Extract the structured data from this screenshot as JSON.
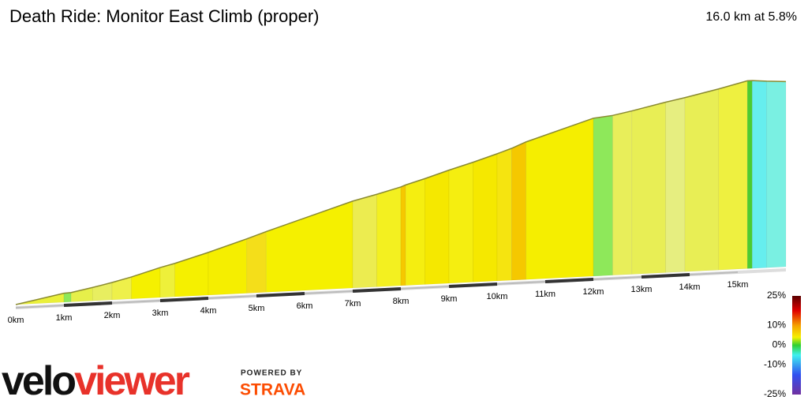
{
  "chart_data": {
    "type": "gradient-profile",
    "title": "Death Ride: Monitor East Climb (proper)",
    "subtitle": "16.0 km at 5.8%",
    "bins": [
      0,
      1,
      1.15,
      1.6,
      2,
      2.4,
      3,
      3.3,
      4,
      4.8,
      5.2,
      7,
      7.5,
      8,
      8.1,
      8.5,
      9,
      9.5,
      10,
      10.3,
      10.6,
      12,
      12.4,
      12.8,
      13.5,
      13.9,
      14.6,
      15.2,
      15.3,
      15.6,
      16
    ],
    "gradients": [
      4,
      1,
      4,
      4.5,
      5,
      6,
      5,
      6,
      6.5,
      7,
      6.5,
      5,
      5.5,
      8,
      6,
      6.5,
      6,
      6.5,
      7,
      8.5,
      6.5,
      2,
      4,
      4.5,
      4,
      4.5,
      5,
      0,
      -2,
      -1.5
    ],
    "colors": [
      "#eaf03a",
      "#8de85a",
      "#e6ef4a",
      "#e8ee60",
      "#eef04a",
      "#f5f000",
      "#eef03a",
      "#f5f000",
      "#f5ee00",
      "#f4de1a",
      "#f5f000",
      "#ecec50",
      "#f3f020",
      "#f5c800",
      "#f5ee10",
      "#f5e800",
      "#f5ee10",
      "#f5e800",
      "#f5e410",
      "#f5c800",
      "#f5ee00",
      "#8ee85a",
      "#e8ee5a",
      "#e8ee55",
      "#e6ee80",
      "#e8ee55",
      "#eef040",
      "#4ccc30",
      "#66eeee",
      "#7af0e2"
    ],
    "xticks": [
      {
        "value": 0,
        "label": "0km"
      },
      {
        "value": 1,
        "label": "1km"
      },
      {
        "value": 2,
        "label": "2km"
      },
      {
        "value": 3,
        "label": "3km"
      },
      {
        "value": 4,
        "label": "4km"
      },
      {
        "value": 5,
        "label": "5km"
      },
      {
        "value": 6,
        "label": "6km"
      },
      {
        "value": 7,
        "label": "7km"
      },
      {
        "value": 8,
        "label": "8km"
      },
      {
        "value": 9,
        "label": "9km"
      },
      {
        "value": 10,
        "label": "10km"
      },
      {
        "value": 11,
        "label": "11km"
      },
      {
        "value": 12,
        "label": "12km"
      },
      {
        "value": 13,
        "label": "13km"
      },
      {
        "value": 14,
        "label": "14km"
      },
      {
        "value": 15,
        "label": "15km"
      }
    ],
    "xlim": [
      0,
      16
    ],
    "colorbar": {
      "lim": [
        -25,
        25
      ],
      "ticks": [
        {
          "value": 25,
          "label": "25%"
        },
        {
          "value": 10,
          "label": "10%"
        },
        {
          "value": 0,
          "label": "0%"
        },
        {
          "value": -10,
          "label": "-10%"
        },
        {
          "value": -25,
          "label": "-25%"
        }
      ]
    },
    "brand": {
      "left": "velo",
      "right": "viewer",
      "powered": "POWERED BY",
      "strava": "STRAVA"
    }
  }
}
